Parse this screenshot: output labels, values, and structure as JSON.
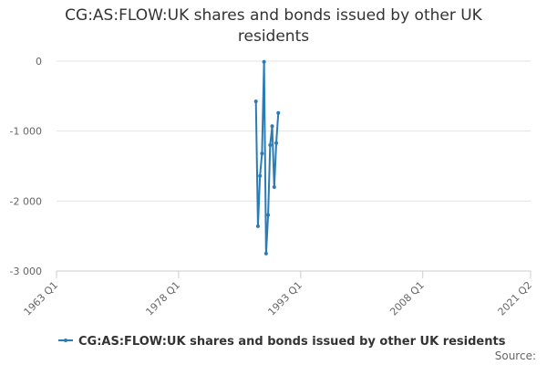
{
  "chart_data": {
    "type": "line",
    "title": "CG:AS:FLOW:UK shares and bonds issued by other UK residents",
    "x": [
      "1987 Q3",
      "1987 Q4",
      "1988 Q1",
      "1988 Q2",
      "1988 Q3",
      "1988 Q4",
      "1989 Q1",
      "1989 Q2",
      "1989 Q3",
      "1989 Q4",
      "1990 Q1",
      "1990 Q2"
    ],
    "series": [
      {
        "name": "CG:AS:FLOW:UK shares and bonds issued by other UK residents",
        "color": "#2b7bb4",
        "values": [
          -575,
          -2360,
          -1640,
          -1320,
          -10,
          -2750,
          -2200,
          -1200,
          -930,
          -1800,
          -1170,
          -740
        ]
      }
    ],
    "xlim": [
      "1963 Q1",
      "2021 Q2"
    ],
    "xticks": [
      "1963 Q1",
      "1978 Q1",
      "1993 Q1",
      "2008 Q1",
      "2021 Q2"
    ],
    "ylim": [
      -3000,
      0
    ],
    "yticks": [
      0,
      {
        "value": -1000,
        "label": "-1 000"
      },
      {
        "value": -2000,
        "label": "-2 000"
      },
      {
        "value": -3000,
        "label": "-3 000"
      }
    ],
    "grid": true,
    "source": "Source:"
  }
}
